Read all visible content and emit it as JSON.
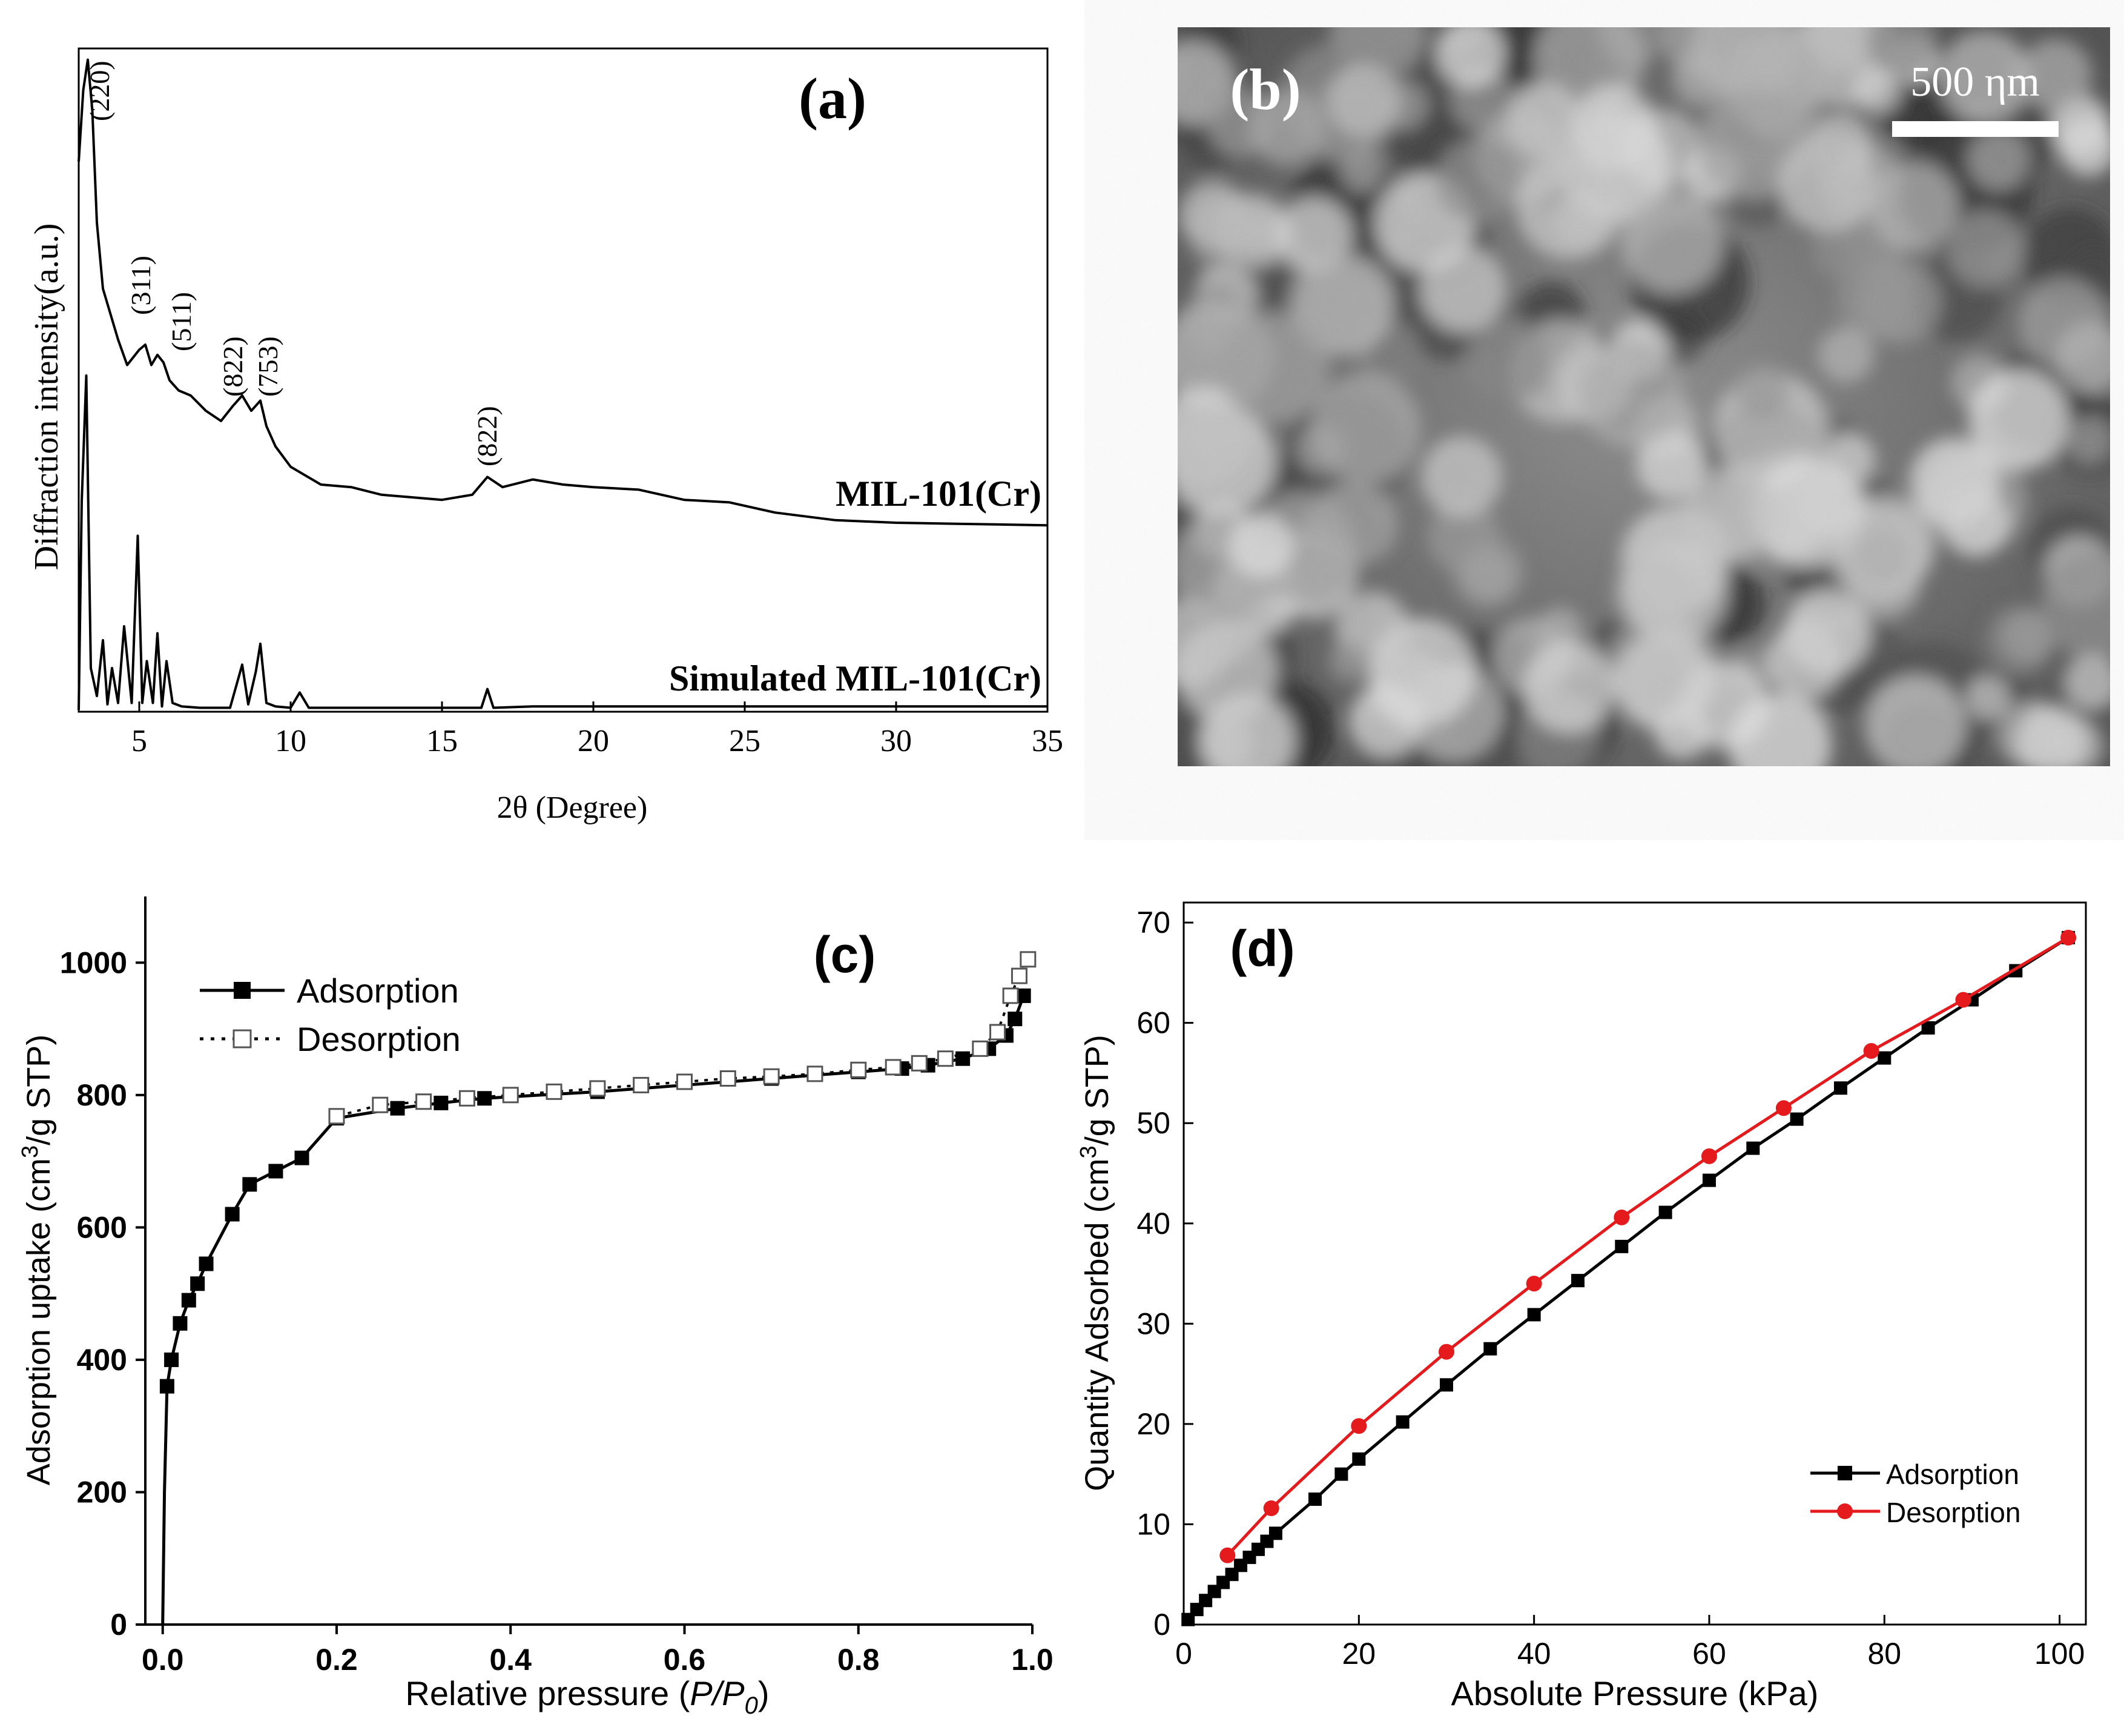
{
  "panels": {
    "a": {
      "label": "(a)"
    },
    "b": {
      "label": "(b)",
      "scale_bar": "500 ηm"
    },
    "c": {
      "label": "(c)"
    },
    "d": {
      "label": "(d)"
    }
  },
  "chart_data": [
    {
      "panel": "a",
      "type": "line",
      "xlabel": "2θ (Degree)",
      "ylabel": "Diffraction intensity(a.u.)",
      "xlim": [
        3,
        35
      ],
      "xticks": [
        5,
        10,
        15,
        20,
        25,
        30,
        35
      ],
      "yticks_shown": false,
      "series": [
        {
          "name": "MIL-101(Cr)",
          "x": [
            3.0,
            3.15,
            3.3,
            3.45,
            3.6,
            3.8,
            4.0,
            4.3,
            4.6,
            5.0,
            5.2,
            5.4,
            5.6,
            5.8,
            6.0,
            6.3,
            6.7,
            7.2,
            7.7,
            8.1,
            8.4,
            8.7,
            9.0,
            9.2,
            9.5,
            10.0,
            11.0,
            12.0,
            13.0,
            14.0,
            15.0,
            16.0,
            16.5,
            17.0,
            18.0,
            19.0,
            20.0,
            21.5,
            23.0,
            24.5,
            26.0,
            28.0,
            30.0,
            32.0,
            35.0
          ],
          "y": [
            760,
            900,
            960,
            860,
            640,
            510,
            470,
            410,
            360,
            390,
            400,
            360,
            380,
            365,
            330,
            310,
            300,
            270,
            250,
            280,
            300,
            270,
            290,
            240,
            200,
            160,
            125,
            120,
            105,
            100,
            95,
            105,
            140,
            120,
            135,
            125,
            120,
            115,
            95,
            90,
            70,
            55,
            50,
            48,
            45
          ]
        },
        {
          "name": "Simulated MIL-101(Cr)",
          "x": [
            3.0,
            3.1,
            3.25,
            3.4,
            3.6,
            3.8,
            3.95,
            4.1,
            4.3,
            4.5,
            4.75,
            4.95,
            5.1,
            5.25,
            5.45,
            5.6,
            5.75,
            5.9,
            6.1,
            6.4,
            7.0,
            8.0,
            8.4,
            8.6,
            8.85,
            9.0,
            9.2,
            9.5,
            10.0,
            10.3,
            10.6,
            12.0,
            15.0,
            16.3,
            16.5,
            16.7,
            18.0,
            22.0,
            25.0,
            30.0,
            35.0
          ],
          "y": [
            0,
            300,
            480,
            60,
            20,
            100,
            8,
            60,
            10,
            120,
            10,
            250,
            10,
            70,
            10,
            110,
            5,
            70,
            10,
            5,
            3,
            3,
            65,
            8,
            55,
            95,
            10,
            5,
            3,
            25,
            3,
            3,
            3,
            3,
            30,
            3,
            5,
            5,
            5,
            5,
            5
          ]
        }
      ],
      "annotations": [
        "(220)",
        "(311)",
        "(511)",
        "(822)",
        "(753)",
        "(822)"
      ]
    },
    {
      "panel": "c",
      "type": "line",
      "xlabel_parts": [
        "Relative pressure (",
        "P/P",
        "0",
        ")"
      ],
      "ylabel_parts": [
        "Adsorption uptake (cm",
        "3",
        "/g STP)"
      ],
      "xlim": [
        -0.02,
        1.0
      ],
      "ylim": [
        0,
        1100
      ],
      "xticks": [
        "0.0",
        "0.2",
        "0.4",
        "0.6",
        "0.8",
        "1.0"
      ],
      "yticks": [
        "0",
        "200",
        "400",
        "600",
        "800",
        "1000"
      ],
      "legend": "top-left",
      "series": [
        {
          "name": "Adsorption",
          "x": [
            0.0,
            0.002,
            0.005,
            0.01,
            0.02,
            0.03,
            0.04,
            0.05,
            0.08,
            0.1,
            0.13,
            0.16,
            0.2,
            0.27,
            0.32,
            0.37,
            0.5,
            0.7,
            0.8,
            0.85,
            0.88,
            0.92,
            0.95,
            0.97,
            0.98,
            0.99
          ],
          "y": [
            0,
            200,
            360,
            400,
            455,
            490,
            515,
            545,
            620,
            665,
            685,
            705,
            765,
            780,
            788,
            795,
            805,
            825,
            835,
            840,
            845,
            855,
            870,
            890,
            915,
            950
          ]
        },
        {
          "name": "Desorption",
          "x": [
            0.995,
            0.985,
            0.975,
            0.96,
            0.94,
            0.9,
            0.87,
            0.84,
            0.8,
            0.75,
            0.7,
            0.65,
            0.6,
            0.55,
            0.5,
            0.45,
            0.4,
            0.35,
            0.3,
            0.25,
            0.2
          ],
          "y": [
            1005,
            980,
            950,
            895,
            870,
            855,
            848,
            842,
            838,
            832,
            828,
            825,
            820,
            815,
            810,
            805,
            800,
            795,
            790,
            785,
            768
          ]
        }
      ]
    },
    {
      "panel": "d",
      "type": "line",
      "xlabel": "Absolute Pressure (kPa)",
      "ylabel_parts": [
        "Quantity Adsorbed (cm",
        "3",
        "/g STP)"
      ],
      "xlim": [
        0,
        103
      ],
      "ylim": [
        0,
        72
      ],
      "xticks": [
        "0",
        "20",
        "40",
        "60",
        "80",
        "100"
      ],
      "yticks": [
        "0",
        "10",
        "20",
        "30",
        "40",
        "50",
        "60",
        "70"
      ],
      "legend": "bottom-right",
      "series": [
        {
          "name": "Adsorption",
          "color": "#000000",
          "x": [
            0.5,
            1.5,
            2.5,
            3.5,
            4.5,
            5.5,
            6.5,
            7.5,
            8.5,
            9.5,
            10.5,
            15,
            18,
            20,
            25,
            30,
            35,
            40,
            45,
            50,
            55,
            60,
            65,
            70,
            75,
            80,
            85,
            90,
            95,
            101
          ],
          "y": [
            0.5,
            1.5,
            2.4,
            3.3,
            4.2,
            5.0,
            5.9,
            6.7,
            7.5,
            8.3,
            9.1,
            12.5,
            15.0,
            16.5,
            20.2,
            23.9,
            27.5,
            30.9,
            34.3,
            37.7,
            41.1,
            44.3,
            47.5,
            50.4,
            53.5,
            56.5,
            59.5,
            62.3,
            65.2,
            68.5
          ]
        },
        {
          "name": "Desorption",
          "color": "#e41a1c",
          "x": [
            101,
            89,
            78.5,
            68.5,
            60,
            50,
            40,
            30,
            20,
            10,
            5
          ],
          "y": [
            68.5,
            62.3,
            57.2,
            51.5,
            46.7,
            40.6,
            34.0,
            27.2,
            19.8,
            11.6,
            6.9
          ]
        }
      ]
    }
  ]
}
